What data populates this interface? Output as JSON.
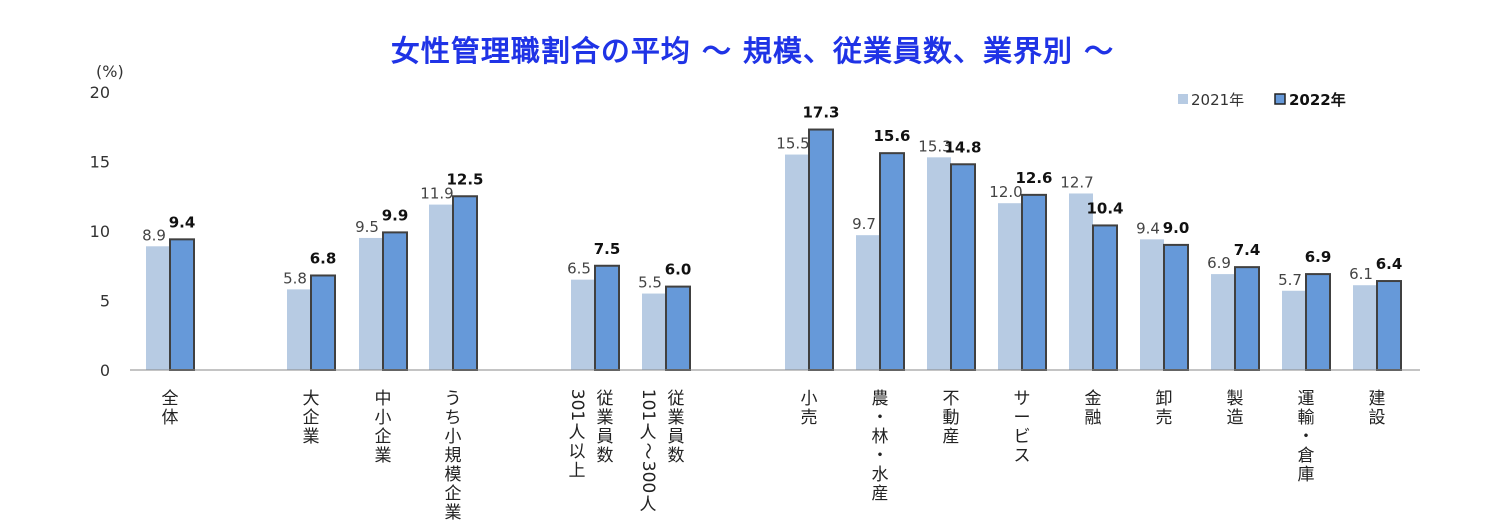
{
  "chart_data": {
    "type": "bar",
    "title": "女性管理職割合の平均 ～ 規模、従業員数、業界別 ～",
    "ylabel": "(%)",
    "ylim": [
      0,
      20
    ],
    "yticks": [
      "0",
      "5",
      "10",
      "15",
      "20"
    ],
    "legend_position": "top-right",
    "grid": false,
    "categories": [
      [
        "全体"
      ],
      [
        "大企業"
      ],
      [
        "中小企業"
      ],
      [
        "うち小規模企業"
      ],
      [
        "301人以上",
        "従業員数"
      ],
      [
        "101人～300人",
        "従業員数"
      ],
      [
        "小売"
      ],
      [
        "農・林・水産"
      ],
      [
        "不動産"
      ],
      [
        "サービス"
      ],
      [
        "金融"
      ],
      [
        "卸売"
      ],
      [
        "製造"
      ],
      [
        "運輸・倉庫"
      ],
      [
        "建設"
      ]
    ],
    "series": [
      {
        "name": "2021年",
        "color": "#b7cbe3",
        "values": [
          8.9,
          5.8,
          9.5,
          11.9,
          6.5,
          5.5,
          15.5,
          9.7,
          15.3,
          12.0,
          12.7,
          9.4,
          6.9,
          5.7,
          6.1
        ],
        "labels": [
          "8.9",
          "5.8",
          "9.5",
          "11.9",
          "6.5",
          "5.5",
          "15.5",
          "9.7",
          "15.3",
          "12.0",
          "12.7",
          "9.4",
          "6.9",
          "5.7",
          "6.1"
        ]
      },
      {
        "name": "2022年",
        "color": "#6699d9",
        "values": [
          9.4,
          6.8,
          9.9,
          12.5,
          7.5,
          6.0,
          17.3,
          15.6,
          14.8,
          12.6,
          10.4,
          9.0,
          7.4,
          6.9,
          6.4
        ],
        "labels": [
          "9.4",
          "6.8",
          "9.9",
          "12.5",
          "7.5",
          "6.0",
          "17.3",
          "15.6",
          "14.8",
          "12.6",
          "10.4",
          "9.0",
          "7.4",
          "6.9",
          "6.4"
        ]
      }
    ]
  }
}
